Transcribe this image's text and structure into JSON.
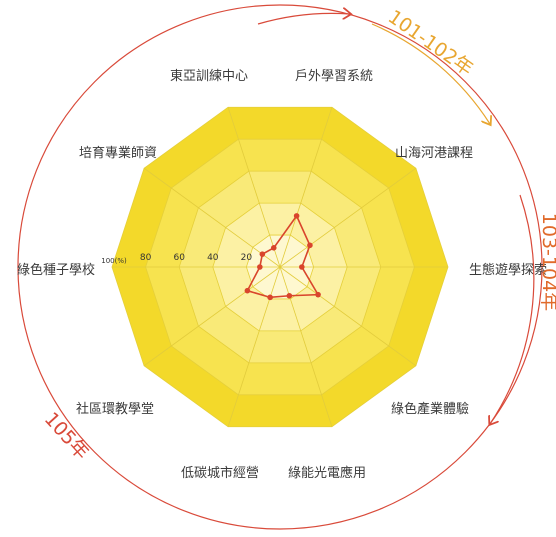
{
  "chart_data": {
    "type": "radar",
    "title": "",
    "axes": [
      "戶外學習系統",
      "山海河港課程",
      "生態遊學探索",
      "綠色產業體驗",
      "綠能光電應用",
      "低碳城市經營",
      "社區環教學堂",
      "綠色種子學校",
      "培育專業師資",
      "東亞訓練中心"
    ],
    "range": [
      0,
      100
    ],
    "unit_label": "100(%)",
    "tick_labels": [
      "20",
      "40",
      "60",
      "80"
    ],
    "series": [
      {
        "values": [
          32,
          22,
          13,
          28,
          18,
          19,
          24,
          12,
          13,
          12
        ]
      }
    ],
    "grid_levels": [
      20,
      40,
      60,
      80,
      100
    ],
    "periods": [
      {
        "label": "101-102年",
        "color": "#e8a630"
      },
      {
        "label": "103-104年",
        "color": "#e06a2a"
      },
      {
        "label": "105年",
        "color": "#d94a3a"
      }
    ],
    "colors": {
      "ring_100": "#f3d92a",
      "ring_80": "#f7e34f",
      "ring_60": "#f9ea78",
      "ring_40": "#fcf1a4",
      "ring_20": "#fef8d0",
      "series_line": "#d9452c",
      "outer_circle": "#d94a3a"
    }
  }
}
